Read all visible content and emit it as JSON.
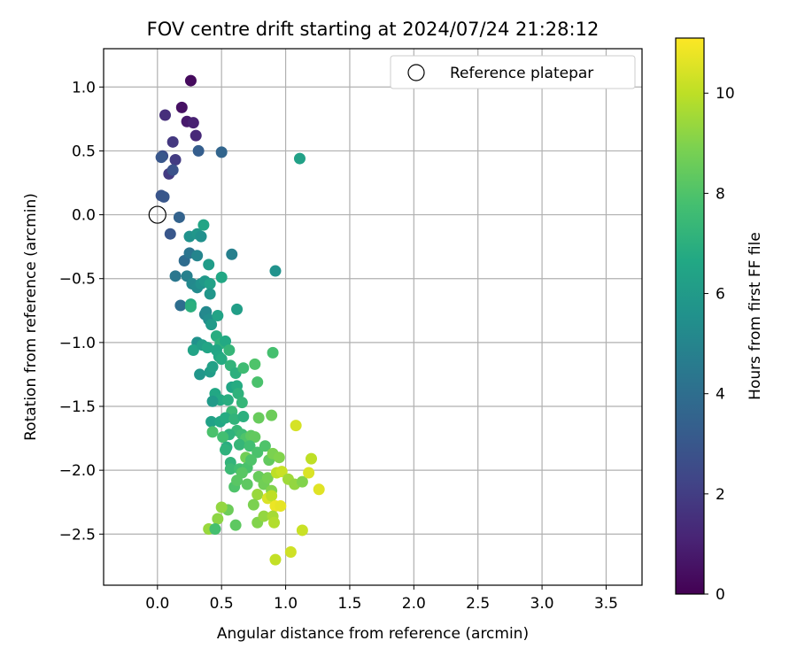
{
  "chart_data": {
    "type": "scatter",
    "title": "FOV centre drift starting at 2024/07/24 21:28:12",
    "xlabel": "Angular distance from reference (arcmin)",
    "ylabel": "Rotation from reference (arcmin)",
    "xlim": [
      -0.42,
      3.78
    ],
    "ylim": [
      -2.9,
      1.3
    ],
    "x_ticks": [
      0.0,
      0.5,
      1.0,
      1.5,
      2.0,
      2.5,
      3.0,
      3.5
    ],
    "x_tick_labels": [
      "0.0",
      "0.5",
      "1.0",
      "1.5",
      "2.0",
      "2.5",
      "3.0",
      "3.5"
    ],
    "y_ticks": [
      -2.5,
      -2.0,
      -1.5,
      -1.0,
      -0.5,
      0.0,
      0.5,
      1.0
    ],
    "y_tick_labels": [
      "−2.5",
      "−2.0",
      "−1.5",
      "−1.0",
      "−0.5",
      "0.0",
      "0.5",
      "1.0"
    ],
    "grid": true,
    "colorbar": {
      "label": "Hours from first FF file",
      "colormap": "viridis",
      "range": [
        0,
        11.1
      ],
      "ticks": [
        0,
        2,
        4,
        6,
        8,
        10
      ],
      "tick_labels": [
        "0",
        "2",
        "4",
        "6",
        "8",
        "10"
      ]
    },
    "reference": {
      "name": "Reference platepar",
      "x": 0.0,
      "y": 0.0
    },
    "legend": {
      "position": "top-right",
      "label": "Reference platepar"
    },
    "series": [
      {
        "values_format": "[x, y, hours]",
        "points": [
          [
            0.26,
            1.05,
            0.3
          ],
          [
            0.19,
            0.84,
            0.5
          ],
          [
            0.23,
            0.73,
            0.8
          ],
          [
            0.28,
            0.72,
            1.0
          ],
          [
            0.06,
            0.78,
            1.5
          ],
          [
            0.3,
            0.62,
            1.3
          ],
          [
            0.12,
            0.57,
            1.8
          ],
          [
            0.14,
            0.43,
            1.9
          ],
          [
            0.04,
            0.46,
            2.6
          ],
          [
            0.03,
            0.45,
            3.0
          ],
          [
            0.32,
            0.5,
            3.3
          ],
          [
            0.5,
            0.49,
            3.6
          ],
          [
            0.09,
            0.32,
            1.9
          ],
          [
            0.12,
            0.35,
            2.8
          ],
          [
            0.03,
            0.15,
            2.9
          ],
          [
            0.05,
            0.14,
            3.0
          ],
          [
            0.17,
            -0.02,
            3.5
          ],
          [
            0.1,
            -0.15,
            3.0
          ],
          [
            0.21,
            -0.36,
            3.9
          ],
          [
            0.25,
            -0.3,
            4.3
          ],
          [
            0.25,
            -0.17,
            5.6
          ],
          [
            0.31,
            -0.15,
            5.8
          ],
          [
            0.34,
            -0.17,
            5.5
          ],
          [
            0.36,
            -0.08,
            6.5
          ],
          [
            0.14,
            -0.48,
            4.4
          ],
          [
            0.23,
            -0.48,
            4.8
          ],
          [
            0.31,
            -0.32,
            5.0
          ],
          [
            0.58,
            -0.31,
            4.8
          ],
          [
            0.27,
            -0.54,
            5.2
          ],
          [
            0.31,
            -0.57,
            5.3
          ],
          [
            0.34,
            -0.54,
            5.6
          ],
          [
            0.37,
            -0.52,
            5.9
          ],
          [
            0.41,
            -0.54,
            6.3
          ],
          [
            0.4,
            -0.39,
            6.1
          ],
          [
            0.5,
            -0.49,
            6.6
          ],
          [
            0.18,
            -0.71,
            4.0
          ],
          [
            0.26,
            -0.7,
            6.8
          ],
          [
            0.26,
            -0.72,
            7.0
          ],
          [
            0.37,
            -0.78,
            5.0
          ],
          [
            0.38,
            -0.76,
            5.2
          ],
          [
            0.4,
            -0.82,
            5.4
          ],
          [
            0.41,
            -0.62,
            5.8
          ],
          [
            0.42,
            -0.86,
            6.0
          ],
          [
            0.62,
            -0.74,
            6.2
          ],
          [
            0.47,
            -0.79,
            6.4
          ],
          [
            0.92,
            -0.44,
            5.6
          ],
          [
            1.11,
            0.44,
            6.3
          ],
          [
            0.31,
            -1.0,
            5.6
          ],
          [
            0.28,
            -1.06,
            6.4
          ],
          [
            0.35,
            -1.02,
            6.2
          ],
          [
            0.39,
            -1.04,
            6.5
          ],
          [
            0.46,
            -0.95,
            6.9
          ],
          [
            0.49,
            -1.01,
            7.1
          ],
          [
            0.53,
            -0.99,
            6.7
          ],
          [
            0.56,
            -1.06,
            7.3
          ],
          [
            0.46,
            -1.06,
            6.5
          ],
          [
            0.48,
            -1.11,
            6.6
          ],
          [
            0.5,
            -1.13,
            6.8
          ],
          [
            0.33,
            -1.25,
            5.8
          ],
          [
            0.41,
            -1.23,
            6.1
          ],
          [
            0.43,
            -1.19,
            6.3
          ],
          [
            0.57,
            -1.18,
            7.2
          ],
          [
            0.61,
            -1.24,
            7.0
          ],
          [
            0.67,
            -1.2,
            7.6
          ],
          [
            0.76,
            -1.17,
            8.0
          ],
          [
            0.78,
            -1.31,
            7.9
          ],
          [
            0.9,
            -1.08,
            7.8
          ],
          [
            0.45,
            -1.4,
            6.6
          ],
          [
            0.49,
            -1.45,
            6.7
          ],
          [
            0.55,
            -1.45,
            6.9
          ],
          [
            0.58,
            -1.35,
            6.5
          ],
          [
            0.62,
            -1.34,
            6.8
          ],
          [
            0.63,
            -1.4,
            7.1
          ],
          [
            0.58,
            -1.54,
            7.5
          ],
          [
            0.66,
            -1.47,
            7.3
          ],
          [
            0.43,
            -1.46,
            6.0
          ],
          [
            0.42,
            -1.62,
            6.3
          ],
          [
            0.49,
            -1.62,
            6.6
          ],
          [
            0.53,
            -1.59,
            6.8
          ],
          [
            0.6,
            -1.6,
            7.2
          ],
          [
            0.67,
            -1.58,
            7.0
          ],
          [
            0.62,
            -1.69,
            7.4
          ],
          [
            0.66,
            -1.72,
            7.6
          ],
          [
            0.56,
            -1.72,
            7.1
          ],
          [
            0.43,
            -1.7,
            7.9
          ],
          [
            0.51,
            -1.74,
            7.7
          ],
          [
            0.69,
            -1.75,
            8.0
          ],
          [
            0.73,
            -1.73,
            8.3
          ],
          [
            0.76,
            -1.74,
            8.4
          ],
          [
            0.79,
            -1.59,
            8.5
          ],
          [
            0.89,
            -1.57,
            8.6
          ],
          [
            0.54,
            -1.82,
            6.9
          ],
          [
            0.53,
            -1.84,
            7.1
          ],
          [
            0.64,
            -1.8,
            7.3
          ],
          [
            0.72,
            -1.81,
            7.7
          ],
          [
            0.78,
            -1.86,
            7.9
          ],
          [
            0.84,
            -1.81,
            8.0
          ],
          [
            0.69,
            -1.9,
            8.7
          ],
          [
            0.87,
            -1.92,
            8.4
          ],
          [
            0.9,
            -1.87,
            8.9
          ],
          [
            0.95,
            -1.9,
            9.0
          ],
          [
            1.08,
            -1.65,
            10.4
          ],
          [
            1.2,
            -1.91,
            10.0
          ],
          [
            0.57,
            -1.94,
            7.2
          ],
          [
            0.57,
            -1.99,
            7.5
          ],
          [
            0.64,
            -1.99,
            7.7
          ],
          [
            0.7,
            -1.98,
            7.9
          ],
          [
            0.66,
            -2.02,
            8.2
          ],
          [
            0.73,
            -1.92,
            8.0
          ],
          [
            0.6,
            -2.13,
            8.0
          ],
          [
            0.62,
            -2.08,
            8.2
          ],
          [
            0.7,
            -2.11,
            8.3
          ],
          [
            0.79,
            -2.05,
            8.5
          ],
          [
            0.83,
            -2.11,
            8.7
          ],
          [
            0.86,
            -2.06,
            8.8
          ],
          [
            0.89,
            -2.16,
            9.0
          ],
          [
            0.93,
            -2.02,
            10.0
          ],
          [
            0.97,
            -2.01,
            10.2
          ],
          [
            1.02,
            -2.07,
            9.5
          ],
          [
            1.07,
            -2.11,
            9.3
          ],
          [
            1.13,
            -2.09,
            9.0
          ],
          [
            1.18,
            -2.02,
            10.5
          ],
          [
            1.26,
            -2.15,
            10.6
          ],
          [
            0.78,
            -2.19,
            9.4
          ],
          [
            0.86,
            -2.22,
            10.5
          ],
          [
            0.89,
            -2.2,
            10.0
          ],
          [
            0.92,
            -2.28,
            10.8
          ],
          [
            0.96,
            -2.28,
            10.7
          ],
          [
            0.75,
            -2.27,
            8.9
          ],
          [
            0.55,
            -2.31,
            8.6
          ],
          [
            0.5,
            -2.29,
            9.3
          ],
          [
            0.47,
            -2.38,
            9.2
          ],
          [
            0.4,
            -2.46,
            9.4
          ],
          [
            0.45,
            -2.46,
            7.8
          ],
          [
            0.61,
            -2.43,
            8.3
          ],
          [
            0.78,
            -2.41,
            9.0
          ],
          [
            0.83,
            -2.36,
            9.3
          ],
          [
            0.9,
            -2.36,
            9.6
          ],
          [
            0.91,
            -2.41,
            9.8
          ],
          [
            0.92,
            -2.7,
            10.1
          ],
          [
            1.04,
            -2.64,
            10.3
          ],
          [
            1.13,
            -2.47,
            10.2
          ]
        ]
      }
    ]
  }
}
